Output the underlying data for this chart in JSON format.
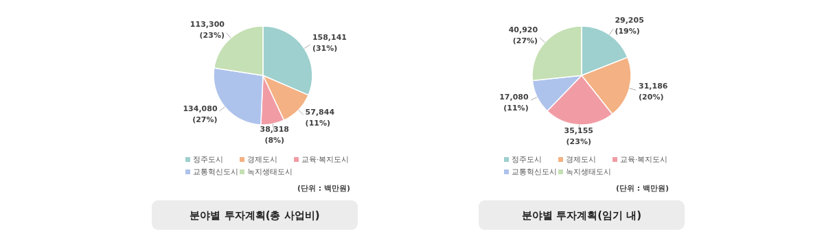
{
  "chart_data": [
    {
      "type": "pie",
      "title": "분야별 투자계획(총 사업비)",
      "categories": [
        "정주도시",
        "경제도시",
        "교육·복지도시",
        "교통혁신도시",
        "녹지생태도시"
      ],
      "values": [
        158141,
        57844,
        38318,
        134080,
        113300
      ],
      "colors": [
        "#9dd0cf",
        "#f4b183",
        "#f19ca5",
        "#aec3ec",
        "#c5e0b4"
      ],
      "value_labels": [
        "158,141\n(31%)",
        "57,844\n(11%)",
        "38,318\n(8%)",
        "134,080\n(27%)",
        "113,300\n(23%)"
      ],
      "legend": "bottom",
      "annotations": [
        "(단위 : 백만원)"
      ]
    },
    {
      "type": "pie",
      "title": "분야별 투자계획(임기 내)",
      "categories": [
        "정주도시",
        "경제도시",
        "교육·복지도시",
        "교통혁신도시",
        "녹지생태도시"
      ],
      "values": [
        29205,
        31186,
        35155,
        17080,
        40920
      ],
      "colors": [
        "#9dd0cf",
        "#f4b183",
        "#f19ca5",
        "#aec3ec",
        "#c5e0b4"
      ],
      "value_labels": [
        "29,205\n(19%)",
        "31,186\n(20%)",
        "35,155\n(23%)",
        "17,080\n(11%)",
        "40,920\n(27%)"
      ],
      "legend": "bottom",
      "annotations": [
        "(단위 : 백만원)"
      ]
    }
  ]
}
